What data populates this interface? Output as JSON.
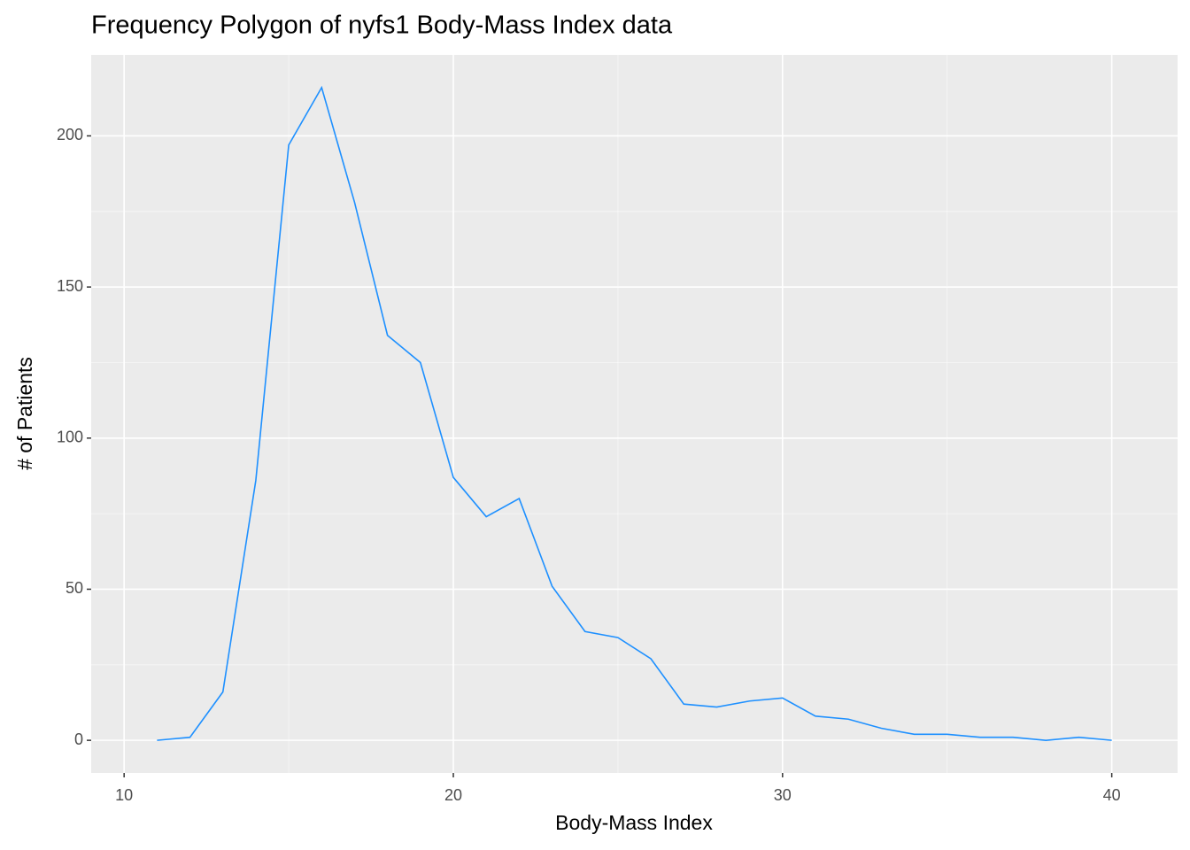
{
  "chart_data": {
    "type": "line",
    "title": "Frequency Polygon of nyfs1 Body-Mass Index data",
    "x_label": "Body-Mass Index",
    "y_label": "# of Patients",
    "x": [
      11,
      12,
      13,
      14,
      15,
      16,
      17,
      18,
      19,
      20,
      21,
      22,
      23,
      24,
      25,
      26,
      27,
      28,
      29,
      30,
      31,
      32,
      33,
      34,
      35,
      36,
      37,
      38,
      39,
      40
    ],
    "values": [
      0,
      1,
      16,
      86,
      197,
      216,
      178,
      134,
      125,
      87,
      74,
      80,
      51,
      36,
      34,
      27,
      12,
      11,
      13,
      14,
      8,
      7,
      4,
      2,
      2,
      1,
      1,
      0,
      1,
      0
    ],
    "color": "#1e90ff",
    "xlim": [
      9,
      42
    ],
    "ylim": [
      -10.8,
      226.8
    ],
    "xticks": [
      10,
      20,
      30,
      40
    ],
    "yticks": [
      0,
      50,
      100,
      150,
      200
    ],
    "xminor": [
      15,
      25,
      35
    ],
    "yminor": [
      25,
      75,
      125,
      175
    ],
    "grid": true,
    "panel_color": "#ebebeb"
  }
}
